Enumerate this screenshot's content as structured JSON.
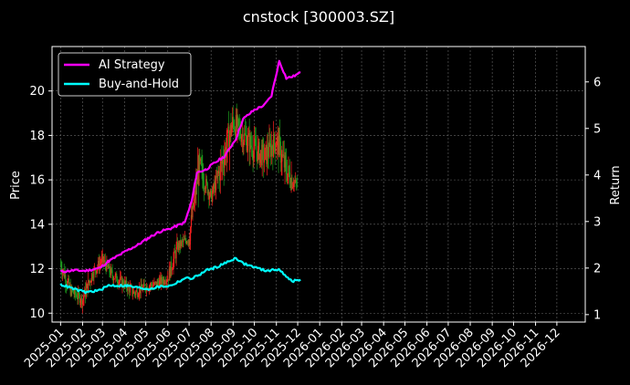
{
  "chart_data": {
    "type": "line",
    "title": "cnstock [300003.SZ]",
    "ylabel_left": "Price",
    "ylabel_right": "Return",
    "ylim_left": [
      9.6,
      22.0
    ],
    "ylim_right": [
      0.84,
      6.76
    ],
    "yticks_left": [
      10,
      12,
      14,
      16,
      18,
      20
    ],
    "yticks_right": [
      1,
      2,
      3,
      4,
      5,
      6
    ],
    "xlim": [
      "2024-12-20",
      "2027-01-10"
    ],
    "xticks": [
      "2025-01",
      "2025-02",
      "2025-03",
      "2025-04",
      "2025-05",
      "2025-06",
      "2025-07",
      "2025-08",
      "2025-09",
      "2025-10",
      "2025-11",
      "2025-12",
      "2026-01",
      "2026-02",
      "2026-03",
      "2026-04",
      "2026-05",
      "2026-06",
      "2026-07",
      "2026-08",
      "2026-09",
      "2026-10",
      "2026-11",
      "2026-12"
    ],
    "grid": true,
    "legend_position": "top-left",
    "background": "#000000",
    "candle_colors": {
      "up": "#ff2020",
      "down": "#1ea01e"
    },
    "price_candles": {
      "x": [
        "2025-01-01",
        "2025-01-15",
        "2025-02-01",
        "2025-02-15",
        "2025-03-01",
        "2025-03-15",
        "2025-04-01",
        "2025-04-15",
        "2025-05-01",
        "2025-05-15",
        "2025-06-01",
        "2025-06-15",
        "2025-07-01",
        "2025-07-15",
        "2025-08-01",
        "2025-08-15",
        "2025-09-01",
        "2025-09-15",
        "2025-10-01",
        "2025-10-15",
        "2025-11-01",
        "2025-11-15",
        "2025-12-01"
      ],
      "close": [
        12.2,
        11.0,
        10.6,
        11.8,
        12.4,
        11.7,
        11.3,
        10.9,
        11.2,
        11.3,
        11.6,
        13.0,
        13.4,
        16.6,
        15.2,
        16.6,
        18.6,
        18.0,
        17.4,
        17.0,
        17.8,
        16.4,
        15.7
      ]
    },
    "series": [
      {
        "name": "AI Strategy",
        "axis": "right",
        "color": "#ff00ff",
        "x": [
          "2025-01-01",
          "2025-01-20",
          "2025-02-05",
          "2025-02-25",
          "2025-03-10",
          "2025-03-25",
          "2025-04-05",
          "2025-04-20",
          "2025-05-05",
          "2025-05-20",
          "2025-06-05",
          "2025-06-25",
          "2025-07-05",
          "2025-07-12",
          "2025-07-25",
          "2025-08-05",
          "2025-08-20",
          "2025-09-05",
          "2025-09-15",
          "2025-10-01",
          "2025-10-15",
          "2025-10-25",
          "2025-11-05",
          "2025-11-15",
          "2025-11-25",
          "2025-12-05"
        ],
        "values": [
          1.92,
          1.95,
          1.94,
          2.0,
          2.15,
          2.28,
          2.38,
          2.5,
          2.65,
          2.78,
          2.85,
          2.98,
          3.45,
          4.05,
          4.12,
          4.25,
          4.4,
          4.78,
          5.2,
          5.4,
          5.5,
          5.7,
          6.45,
          6.08,
          6.12,
          6.2
        ]
      },
      {
        "name": "Buy-and-Hold",
        "axis": "right",
        "color": "#00ffff",
        "x": [
          "2025-01-01",
          "2025-01-20",
          "2025-02-05",
          "2025-02-25",
          "2025-03-10",
          "2025-03-25",
          "2025-04-05",
          "2025-04-20",
          "2025-05-05",
          "2025-05-20",
          "2025-06-05",
          "2025-06-25",
          "2025-07-05",
          "2025-07-15",
          "2025-07-25",
          "2025-08-05",
          "2025-08-20",
          "2025-09-05",
          "2025-09-15",
          "2025-10-01",
          "2025-10-15",
          "2025-10-25",
          "2025-11-05",
          "2025-11-15",
          "2025-11-25",
          "2025-12-05"
        ],
        "values": [
          1.65,
          1.55,
          1.48,
          1.52,
          1.63,
          1.62,
          1.62,
          1.58,
          1.55,
          1.6,
          1.62,
          1.78,
          1.78,
          1.85,
          1.95,
          2.0,
          2.1,
          2.22,
          2.1,
          2.02,
          1.95,
          1.95,
          1.98,
          1.8,
          1.72,
          1.75
        ]
      }
    ]
  }
}
